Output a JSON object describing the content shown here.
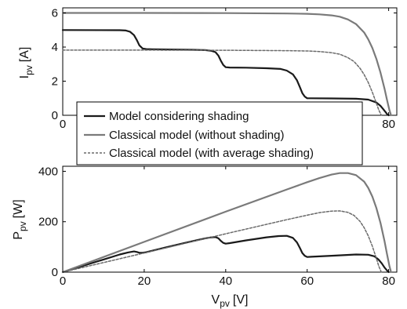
{
  "figure": {
    "background": "#ffffff"
  },
  "chart_data": [
    {
      "type": "line",
      "title": "",
      "xlabel": "",
      "ylabel_main": "I",
      "ylabel_sub": "pv",
      "ylabel_unit": "[A]",
      "xlim": [
        0,
        82
      ],
      "ylim": [
        0,
        6.3
      ],
      "xticks": [
        "0",
        "20",
        "40",
        "60",
        "80"
      ],
      "yticks": [
        "0",
        "2",
        "4",
        "6"
      ],
      "xtick_values": [
        0,
        20,
        40,
        60,
        80
      ],
      "ytick_values": [
        0,
        2,
        4,
        6
      ],
      "grid": false,
      "series": [
        {
          "name": "Model considering shading",
          "color": "#1a1a1a",
          "dash": "",
          "width": 2.2,
          "x": [
            0,
            14,
            15.5,
            16.5,
            17.5,
            18.2,
            18.8,
            19.6,
            20.5,
            22,
            32,
            35,
            36.5,
            37.5,
            38.2,
            38.8,
            39.4,
            40,
            41,
            45,
            50,
            53.5,
            55,
            56.5,
            57.5,
            58.2,
            58.8,
            59.4,
            60,
            61,
            66,
            72,
            75,
            77,
            78,
            78.6,
            79.2,
            79.6,
            80
          ],
          "y": [
            5.0,
            4.99,
            4.97,
            4.9,
            4.7,
            4.4,
            4.1,
            3.92,
            3.88,
            3.87,
            3.84,
            3.82,
            3.78,
            3.7,
            3.5,
            3.2,
            2.95,
            2.82,
            2.8,
            2.79,
            2.76,
            2.72,
            2.62,
            2.4,
            2.05,
            1.65,
            1.3,
            1.1,
            1.0,
            1.0,
            0.99,
            0.97,
            0.92,
            0.75,
            0.55,
            0.38,
            0.2,
            0.08,
            0.0
          ]
        },
        {
          "name": "Classical model (without shading)",
          "color": "#7a7a7a",
          "dash": "",
          "width": 2.2,
          "x": [
            0,
            20,
            40,
            55,
            60,
            63,
            66,
            68,
            70,
            72,
            74,
            75,
            76,
            77,
            78,
            79,
            79.6,
            80.2,
            80.6
          ],
          "y": [
            6.0,
            6.0,
            5.99,
            5.97,
            5.95,
            5.92,
            5.86,
            5.78,
            5.62,
            5.35,
            4.85,
            4.45,
            3.95,
            3.3,
            2.5,
            1.55,
            0.9,
            0.3,
            0.0
          ]
        },
        {
          "name": "Classical model (with average shading)",
          "color": "#6a6a6a",
          "dash": "3,2",
          "width": 1.5,
          "x": [
            0,
            20,
            40,
            55,
            60,
            63,
            66,
            68,
            70,
            71.5,
            73,
            74,
            75,
            76,
            77,
            77.6,
            78.2
          ],
          "y": [
            3.82,
            3.82,
            3.81,
            3.79,
            3.77,
            3.74,
            3.67,
            3.58,
            3.38,
            3.15,
            2.75,
            2.38,
            1.92,
            1.35,
            0.7,
            0.3,
            0.0
          ]
        }
      ],
      "legend": {
        "placement": "bottom-left",
        "entries": [
          "Model considering shading",
          "Classical model (without shading)",
          "Classical model (with average shading)"
        ]
      }
    },
    {
      "type": "line",
      "title": "",
      "xlabel_main": "V",
      "xlabel_sub": "pv",
      "xlabel_unit": "[V]",
      "ylabel_main": "P",
      "ylabel_sub": "pv",
      "ylabel_unit": "[W]",
      "xlim": [
        0,
        82
      ],
      "ylim": [
        0,
        420
      ],
      "xticks": [
        "0",
        "20",
        "40",
        "60",
        "80"
      ],
      "yticks": [
        "0",
        "200",
        "400"
      ],
      "xtick_values": [
        0,
        20,
        40,
        60,
        80
      ],
      "ytick_values": [
        0,
        200,
        400
      ],
      "grid": false,
      "series": [
        {
          "name": "Model considering shading",
          "color": "#1a1a1a",
          "dash": "",
          "width": 2.2,
          "x": [
            0,
            10,
            14,
            16,
            17.5,
            18.2,
            18.8,
            19.6,
            20.5,
            25,
            30,
            35,
            36.5,
            37.5,
            38.2,
            38.8,
            39.4,
            40,
            41,
            45,
            50,
            53,
            55,
            56.5,
            57.5,
            58.2,
            58.8,
            59.4,
            60,
            61,
            66,
            72,
            75,
            76.5,
            77.5,
            78.3,
            79,
            79.6,
            80
          ],
          "y": [
            0,
            50,
            70,
            78,
            82,
            80,
            77,
            77,
            79,
            97,
            116,
            134,
            138,
            139,
            134,
            124,
            116,
            113,
            115,
            126,
            138,
            143,
            144,
            136,
            118,
            96,
            76,
            65,
            60,
            61,
            65,
            70,
            69,
            63,
            50,
            35,
            18,
            7,
            0
          ]
        },
        {
          "name": "Classical model (without shading)",
          "color": "#7a7a7a",
          "dash": "",
          "width": 2.2,
          "x": [
            0,
            20,
            40,
            55,
            60,
            63,
            66,
            68,
            70,
            72,
            74,
            75,
            76,
            77,
            78,
            79,
            79.6,
            80.2,
            80.6
          ],
          "y": [
            0,
            120,
            240,
            328,
            357,
            373,
            387,
            393,
            393,
            385,
            359,
            334,
            300,
            254,
            195,
            122,
            72,
            24,
            0
          ]
        },
        {
          "name": "Classical model (with average shading)",
          "color": "#6a6a6a",
          "dash": "3,2",
          "width": 1.5,
          "x": [
            0,
            20,
            40,
            55,
            60,
            63,
            66,
            68,
            70,
            71.5,
            73,
            74,
            75,
            76,
            77,
            77.6,
            78.2
          ],
          "y": [
            0,
            76,
            152,
            208,
            226,
            236,
            242,
            243,
            237,
            225,
            201,
            176,
            144,
            103,
            54,
            23,
            0
          ]
        }
      ]
    }
  ]
}
